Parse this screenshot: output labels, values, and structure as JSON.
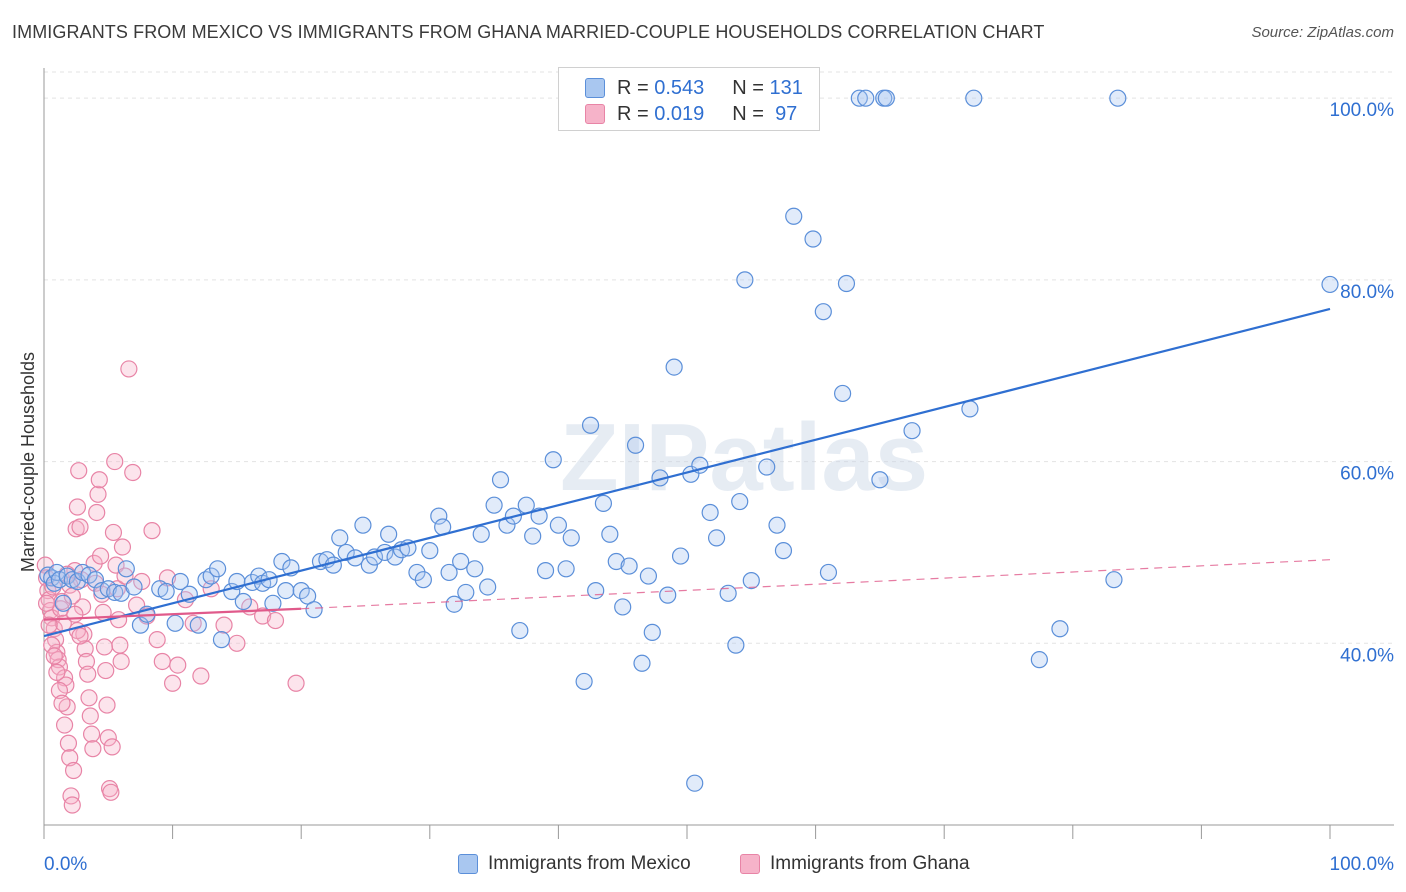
{
  "title": "IMMIGRANTS FROM MEXICO VS IMMIGRANTS FROM GHANA MARRIED-COUPLE HOUSEHOLDS CORRELATION CHART",
  "source": "Source: ZipAtlas.com",
  "watermark": "ZIPatlas",
  "colors": {
    "mexico_fill": "#a9c7f0",
    "mexico_stroke": "#5b8fd9",
    "mexico_line": "#2f6fd1",
    "ghana_fill": "#f6b3c9",
    "ghana_stroke": "#e884a6",
    "ghana_line": "#e05a8b",
    "grid": "#e3e3e3",
    "value_text": "#2f6fd1"
  },
  "legend": {
    "rows": [
      {
        "r_label": "R =",
        "r_value": "0.543",
        "n_label": "N =",
        "n_value": "131"
      },
      {
        "r_label": "R =",
        "r_value": "0.019",
        "n_label": "N =",
        "n_value": "97"
      }
    ]
  },
  "bottom_legend": {
    "mexico": "Immigrants from Mexico",
    "ghana": "Immigrants from Ghana"
  },
  "chart_data": {
    "type": "scatter",
    "title": "IMMIGRANTS FROM MEXICO VS IMMIGRANTS FROM GHANA MARRIED-COUPLE HOUSEHOLDS CORRELATION CHART",
    "xlabel": "",
    "ylabel": "Married-couple Households",
    "xlim": [
      0,
      100
    ],
    "ylim": [
      20,
      102
    ],
    "x_tick_labels": {
      "left": "0.0%",
      "right": "100.0%"
    },
    "y_ticks": [
      {
        "value": 100,
        "label": "100.0%"
      },
      {
        "value": 80,
        "label": "80.0%"
      },
      {
        "value": 60,
        "label": "60.0%"
      },
      {
        "value": 40,
        "label": "40.0%"
      }
    ],
    "series": [
      {
        "name": "Immigrants from Mexico",
        "r": 0.543,
        "n": 131,
        "trend": {
          "x0": 0,
          "y0": 40.8,
          "x1": 100,
          "y1": 76.8,
          "style": "solid"
        },
        "points": [
          [
            0.3,
            47.5
          ],
          [
            0.6,
            47.2
          ],
          [
            0.8,
            46.6
          ],
          [
            1.0,
            47.8
          ],
          [
            1.2,
            47.0
          ],
          [
            1.5,
            44.4
          ],
          [
            1.8,
            47.4
          ],
          [
            2.2,
            47.0
          ],
          [
            2.6,
            46.8
          ],
          [
            3.0,
            47.8
          ],
          [
            3.5,
            47.5
          ],
          [
            4.0,
            47.0
          ],
          [
            4.5,
            45.8
          ],
          [
            5.0,
            46.0
          ],
          [
            5.5,
            45.6
          ],
          [
            6.0,
            45.5
          ],
          [
            6.4,
            48.2
          ],
          [
            7.0,
            46.2
          ],
          [
            7.5,
            42.0
          ],
          [
            8.0,
            43.2
          ],
          [
            9.0,
            46.0
          ],
          [
            9.5,
            45.7
          ],
          [
            10.2,
            42.2
          ],
          [
            10.6,
            46.8
          ],
          [
            11.3,
            45.4
          ],
          [
            12.0,
            42.0
          ],
          [
            12.6,
            47.0
          ],
          [
            13.0,
            47.4
          ],
          [
            13.5,
            48.2
          ],
          [
            13.8,
            40.4
          ],
          [
            14.6,
            45.7
          ],
          [
            15.0,
            46.8
          ],
          [
            15.5,
            44.6
          ],
          [
            16.2,
            46.7
          ],
          [
            16.7,
            47.4
          ],
          [
            17.0,
            46.6
          ],
          [
            17.5,
            47.0
          ],
          [
            17.8,
            44.4
          ],
          [
            18.5,
            49.0
          ],
          [
            18.8,
            45.8
          ],
          [
            19.2,
            48.3
          ],
          [
            20.0,
            45.8
          ],
          [
            20.5,
            45.2
          ],
          [
            21.0,
            43.7
          ],
          [
            21.5,
            49.0
          ],
          [
            22.0,
            49.2
          ],
          [
            22.5,
            48.6
          ],
          [
            23.0,
            51.6
          ],
          [
            23.5,
            50.0
          ],
          [
            24.2,
            49.4
          ],
          [
            24.8,
            53.0
          ],
          [
            25.3,
            48.6
          ],
          [
            25.7,
            49.5
          ],
          [
            26.5,
            50.0
          ],
          [
            26.8,
            52.0
          ],
          [
            27.3,
            49.5
          ],
          [
            27.8,
            50.3
          ],
          [
            28.3,
            50.5
          ],
          [
            29.0,
            47.8
          ],
          [
            29.5,
            47.0
          ],
          [
            30.0,
            50.2
          ],
          [
            30.7,
            54.0
          ],
          [
            31.0,
            52.8
          ],
          [
            31.5,
            47.8
          ],
          [
            31.9,
            44.3
          ],
          [
            32.4,
            49.0
          ],
          [
            32.8,
            45.6
          ],
          [
            33.5,
            48.2
          ],
          [
            34.0,
            52.0
          ],
          [
            34.5,
            46.2
          ],
          [
            35.0,
            55.2
          ],
          [
            35.5,
            58.0
          ],
          [
            36.0,
            53.0
          ],
          [
            36.5,
            54.0
          ],
          [
            37.5,
            55.2
          ],
          [
            37.0,
            41.4
          ],
          [
            38.0,
            51.8
          ],
          [
            38.5,
            54.0
          ],
          [
            39.0,
            48.0
          ],
          [
            39.6,
            60.2
          ],
          [
            40.0,
            53.0
          ],
          [
            40.6,
            48.2
          ],
          [
            41.0,
            51.6
          ],
          [
            42.0,
            35.8
          ],
          [
            42.5,
            64.0
          ],
          [
            42.9,
            45.8
          ],
          [
            43.5,
            55.4
          ],
          [
            44.0,
            52.0
          ],
          [
            44.5,
            49.0
          ],
          [
            45.0,
            44.0
          ],
          [
            45.5,
            48.5
          ],
          [
            46.0,
            61.8
          ],
          [
            46.5,
            37.8
          ],
          [
            47.0,
            47.4
          ],
          [
            47.3,
            41.2
          ],
          [
            47.9,
            58.2
          ],
          [
            48.5,
            45.3
          ],
          [
            49.0,
            70.4
          ],
          [
            49.5,
            49.6
          ],
          [
            50.3,
            58.6
          ],
          [
            50.6,
            24.6
          ],
          [
            51.0,
            59.6
          ],
          [
            51.8,
            54.4
          ],
          [
            52.3,
            51.6
          ],
          [
            53.2,
            45.5
          ],
          [
            53.8,
            39.8
          ],
          [
            54.1,
            55.6
          ],
          [
            54.5,
            80.0
          ],
          [
            55.0,
            46.9
          ],
          [
            56.2,
            59.4
          ],
          [
            57.0,
            53.0
          ],
          [
            57.5,
            50.2
          ],
          [
            58.3,
            87.0
          ],
          [
            59.8,
            84.5
          ],
          [
            60.6,
            76.5
          ],
          [
            61.0,
            47.8
          ],
          [
            62.1,
            67.5
          ],
          [
            62.4,
            79.6
          ],
          [
            63.4,
            100.0
          ],
          [
            65.3,
            100.0
          ],
          [
            65.5,
            100.0
          ],
          [
            67.5,
            63.4
          ],
          [
            72.0,
            65.8
          ],
          [
            72.3,
            100.0
          ],
          [
            77.4,
            38.2
          ],
          [
            79.0,
            41.6
          ],
          [
            83.2,
            47.0
          ],
          [
            83.5,
            100.0
          ],
          [
            100.0,
            79.5
          ],
          [
            63.9,
            100.0
          ],
          [
            65.0,
            58.0
          ]
        ]
      },
      {
        "name": "Immigrants from Ghana",
        "r": 0.019,
        "n": 97,
        "trend": {
          "x0": 0,
          "y0": 42.6,
          "x1": 20,
          "y1": 43.8,
          "style": "solid"
        },
        "trend_extension": {
          "x0": 20,
          "y0": 43.8,
          "x1": 100,
          "y1": 49.2,
          "style": "dashed"
        },
        "points": [
          [
            0.1,
            48.6
          ],
          [
            0.2,
            47.2
          ],
          [
            0.3,
            45.8
          ],
          [
            0.4,
            44.8
          ],
          [
            0.5,
            43.6
          ],
          [
            0.6,
            42.8
          ],
          [
            0.7,
            46.2
          ],
          [
            0.8,
            41.6
          ],
          [
            0.9,
            40.4
          ],
          [
            1.0,
            39.0
          ],
          [
            1.1,
            38.2
          ],
          [
            1.2,
            37.4
          ],
          [
            1.3,
            43.8
          ],
          [
            1.4,
            44.6
          ],
          [
            1.5,
            42.2
          ],
          [
            1.6,
            36.2
          ],
          [
            1.7,
            35.4
          ],
          [
            1.8,
            33.0
          ],
          [
            1.9,
            29.0
          ],
          [
            2.0,
            27.4
          ],
          [
            2.1,
            23.2
          ],
          [
            2.2,
            22.2
          ],
          [
            2.3,
            26.0
          ],
          [
            2.4,
            48.0
          ],
          [
            2.5,
            52.6
          ],
          [
            2.6,
            55.0
          ],
          [
            2.7,
            59.0
          ],
          [
            2.8,
            52.8
          ],
          [
            2.9,
            47.0
          ],
          [
            3.0,
            44.0
          ],
          [
            3.1,
            41.0
          ],
          [
            3.2,
            39.4
          ],
          [
            3.3,
            38.0
          ],
          [
            3.4,
            36.6
          ],
          [
            3.5,
            34.0
          ],
          [
            3.6,
            32.0
          ],
          [
            3.7,
            30.0
          ],
          [
            3.8,
            28.4
          ],
          [
            3.9,
            48.8
          ],
          [
            4.0,
            46.6
          ],
          [
            4.1,
            54.4
          ],
          [
            4.2,
            56.4
          ],
          [
            4.3,
            58.0
          ],
          [
            4.4,
            49.6
          ],
          [
            4.5,
            45.4
          ],
          [
            4.6,
            43.4
          ],
          [
            4.7,
            39.6
          ],
          [
            4.8,
            37.0
          ],
          [
            4.9,
            33.2
          ],
          [
            5.0,
            29.6
          ],
          [
            5.1,
            24.0
          ],
          [
            5.2,
            23.6
          ],
          [
            5.3,
            28.6
          ],
          [
            5.4,
            52.2
          ],
          [
            5.5,
            60.0
          ],
          [
            5.6,
            48.6
          ],
          [
            5.7,
            46.0
          ],
          [
            5.8,
            42.6
          ],
          [
            5.9,
            39.8
          ],
          [
            6.0,
            38.0
          ],
          [
            6.1,
            50.6
          ],
          [
            6.3,
            47.4
          ],
          [
            6.6,
            70.2
          ],
          [
            6.9,
            58.8
          ],
          [
            7.2,
            44.2
          ],
          [
            7.6,
            46.8
          ],
          [
            8.0,
            43.0
          ],
          [
            8.4,
            52.4
          ],
          [
            8.8,
            40.4
          ],
          [
            9.2,
            38.0
          ],
          [
            9.6,
            47.2
          ],
          [
            10.0,
            35.6
          ],
          [
            10.4,
            37.6
          ],
          [
            11.0,
            44.8
          ],
          [
            11.6,
            42.2
          ],
          [
            12.2,
            36.4
          ],
          [
            13.0,
            46.0
          ],
          [
            14.0,
            42.0
          ],
          [
            15.0,
            40.0
          ],
          [
            16.0,
            44.0
          ],
          [
            17.0,
            43.0
          ],
          [
            18.0,
            42.5
          ],
          [
            19.6,
            35.6
          ],
          [
            0.2,
            44.4
          ],
          [
            0.4,
            42.0
          ],
          [
            0.6,
            39.8
          ],
          [
            0.8,
            38.6
          ],
          [
            1.0,
            36.8
          ],
          [
            1.2,
            34.8
          ],
          [
            1.4,
            33.4
          ],
          [
            1.6,
            31.0
          ],
          [
            1.8,
            47.6
          ],
          [
            2.0,
            46.4
          ],
          [
            2.2,
            45.2
          ],
          [
            2.4,
            43.2
          ],
          [
            2.6,
            41.4
          ],
          [
            2.8,
            40.8
          ]
        ]
      }
    ]
  }
}
